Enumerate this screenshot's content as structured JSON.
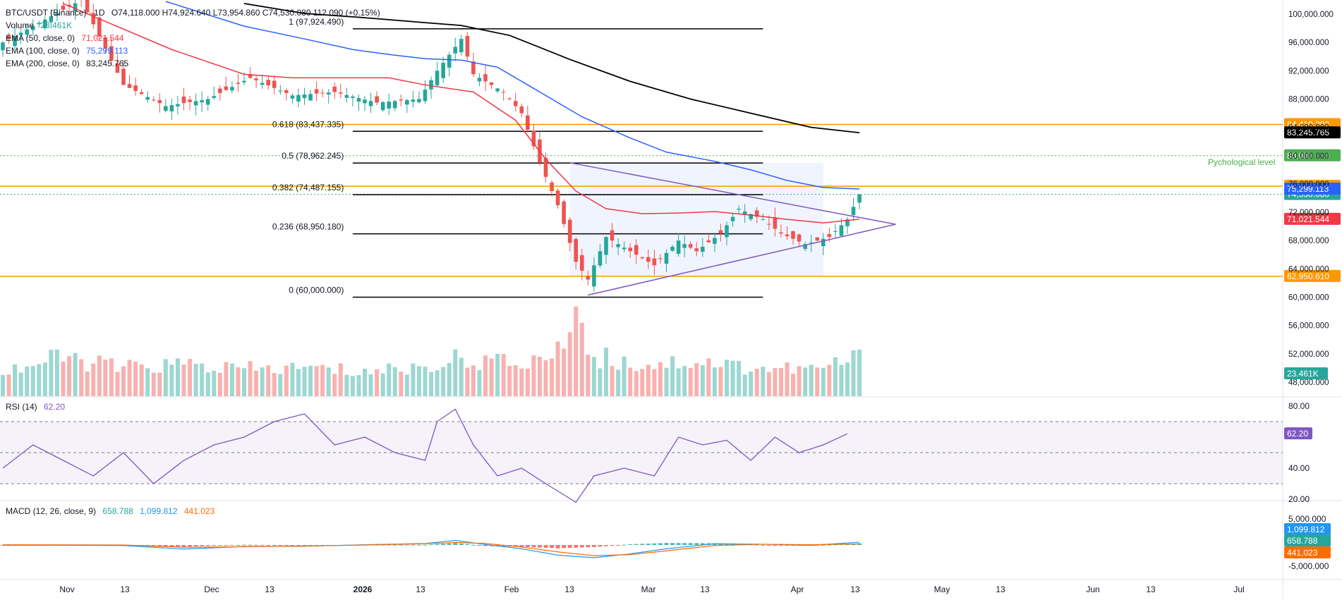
{
  "header": {
    "symbol": "BTC/USDT (Binance) · 1D",
    "ohlc": "O74,118.000 H74,924.640 L73,954.860 C74,530.080 112.090 (+0.15%)",
    "volume_label": "Volume",
    "volume_value": "23.461K",
    "ema50_label": "EMA (50, close, 0)",
    "ema50_value": "71,021.544",
    "ema100_label": "EMA (100, close, 0)",
    "ema100_value": "75,299.113",
    "ema200_label": "EMA (200, close, 0)",
    "ema200_value": "83,245.765"
  },
  "rsi_legend": {
    "label": "RSI (14)",
    "value": "62.20"
  },
  "macd_legend": {
    "label": "MACD (12, 26, close, 9)",
    "v1": "658.788",
    "v2": "1,099.812",
    "v3": "441.023"
  },
  "colors": {
    "up": "#26a69a",
    "down": "#ef5350",
    "ema50": "#f23645",
    "ema100": "#2962ff",
    "ema200": "#000000",
    "orange": "#ff9800",
    "green_level": "#4caf50",
    "triangle": "#7e57c2",
    "rsi": "#7e57c2",
    "macd": "#2196f3",
    "signal": "#ff6d00"
  },
  "chart_data": {
    "type": "candlestick",
    "x_axis": {
      "ticks": [
        "Nov",
        "13",
        "Dec",
        "13",
        "2026",
        "13",
        "Feb",
        "13",
        "Mar",
        "13",
        "Apr",
        "13",
        "May",
        "13",
        "Jun",
        "13",
        "Jul"
      ]
    },
    "price_axis": {
      "range": [
        46000,
        102000
      ],
      "ticks": [
        "100,000.000",
        "96,000.000",
        "92,000.000",
        "88,000.000",
        "84,000.000",
        "80,000.000",
        "76,000.000",
        "72,000.000",
        "68,000.000",
        "64,000.000",
        "60,000.000",
        "56,000.000",
        "52,000.000",
        "48,000.000"
      ]
    },
    "price_path": [
      [
        0,
        96000
      ],
      [
        13,
        102000
      ],
      [
        20,
        90000
      ],
      [
        27,
        87000
      ],
      [
        34,
        88000
      ],
      [
        41,
        91000
      ],
      [
        48,
        88500
      ],
      [
        55,
        89000
      ],
      [
        62,
        87500
      ],
      [
        69,
        88000
      ],
      [
        72,
        92000
      ],
      [
        76,
        96500
      ],
      [
        78,
        91500
      ],
      [
        83,
        89000
      ],
      [
        86,
        86000
      ],
      [
        89,
        79000
      ],
      [
        92,
        73000
      ],
      [
        95,
        65000
      ],
      [
        97,
        62500
      ],
      [
        100,
        68500
      ],
      [
        104,
        66500
      ],
      [
        108,
        64500
      ],
      [
        112,
        68000
      ],
      [
        115,
        66500
      ],
      [
        119,
        69000
      ],
      [
        122,
        72500
      ],
      [
        126,
        71000
      ],
      [
        129,
        69000
      ],
      [
        133,
        67500
      ],
      [
        137,
        68500
      ],
      [
        140,
        71000
      ],
      [
        142,
        74530
      ]
    ],
    "volume_path": [
      [
        0,
        35
      ],
      [
        10,
        55
      ],
      [
        20,
        40
      ],
      [
        30,
        45
      ],
      [
        40,
        38
      ],
      [
        50,
        40
      ],
      [
        60,
        35
      ],
      [
        70,
        42
      ],
      [
        77,
        55
      ],
      [
        85,
        45
      ],
      [
        92,
        60
      ],
      [
        95,
        140
      ],
      [
        97,
        60
      ],
      [
        105,
        45
      ],
      [
        115,
        50
      ],
      [
        125,
        40
      ],
      [
        135,
        38
      ],
      [
        142,
        55
      ]
    ],
    "ema50": [
      [
        10,
        101500
      ],
      [
        28,
        95000
      ],
      [
        40,
        91500
      ],
      [
        48,
        91000
      ],
      [
        58,
        91000
      ],
      [
        64,
        91000
      ],
      [
        70,
        90000
      ],
      [
        78,
        89000
      ],
      [
        85,
        85000
      ],
      [
        90,
        79500
      ],
      [
        95,
        75000
      ],
      [
        100,
        72500
      ],
      [
        106,
        71800
      ],
      [
        112,
        71900
      ],
      [
        118,
        72100
      ],
      [
        124,
        71600
      ],
      [
        130,
        71000
      ],
      [
        136,
        70500
      ],
      [
        142,
        71021.544
      ]
    ],
    "ema100": [
      [
        27,
        101800
      ],
      [
        40,
        98300
      ],
      [
        50,
        96500
      ],
      [
        58,
        95000
      ],
      [
        64,
        94300
      ],
      [
        70,
        93700
      ],
      [
        76,
        93500
      ],
      [
        82,
        92500
      ],
      [
        88,
        89500
      ],
      [
        96,
        85500
      ],
      [
        104,
        82500
      ],
      [
        110,
        80500
      ],
      [
        118,
        79200
      ],
      [
        124,
        78000
      ],
      [
        130,
        76500
      ],
      [
        136,
        75500
      ],
      [
        142,
        75299.113
      ]
    ],
    "ema200": [
      [
        40,
        101500
      ],
      [
        50,
        100100
      ],
      [
        60,
        99500
      ],
      [
        70,
        98800
      ],
      [
        76,
        98400
      ],
      [
        84,
        97000
      ],
      [
        94,
        93600
      ],
      [
        104,
        90500
      ],
      [
        114,
        88000
      ],
      [
        124,
        86000
      ],
      [
        134,
        84000
      ],
      [
        142,
        83245.765
      ]
    ],
    "fibonacci": [
      {
        "label": "1 (97,924.490)",
        "price": 97924.49
      },
      {
        "label": "0.618 (83,437.335)",
        "price": 83437.335
      },
      {
        "label": "0.5 (78,962.245)",
        "price": 78962.245
      },
      {
        "label": "0.382 (74,487.155)",
        "price": 74487.155
      },
      {
        "label": "0.236 (68,950.180)",
        "price": 68950.18
      },
      {
        "label": "0 (60,000.000)",
        "price": 60000
      }
    ],
    "horizontal_levels": [
      {
        "price": 84410.302,
        "label": "84,410.302",
        "color": "#ff9800"
      },
      {
        "price": 75680.16,
        "label": "75,680.160",
        "color": "#ff9800"
      },
      {
        "price": 62950.61,
        "label": "62,950.610",
        "color": "#ff9800"
      },
      {
        "price": 80000,
        "label": "80,000.000",
        "color": "#4caf50"
      },
      {
        "price": 74530.08,
        "label": "74,530.080",
        "color": "#26a69a"
      }
    ],
    "psych_label": "Pychological level",
    "price_badges": [
      {
        "price": 83245.765,
        "label": "83,245.765",
        "color": "#000000"
      },
      {
        "price": 75299.113,
        "label": "75,299.113",
        "color": "#2962ff"
      },
      {
        "price": 71021.544,
        "label": "71,021.544",
        "color": "#f23645"
      }
    ],
    "triangle": {
      "upper": [
        [
          94,
          79000
        ],
        [
          148,
          70300
        ]
      ],
      "lower": [
        [
          97,
          60300
        ],
        [
          148,
          70300
        ]
      ]
    },
    "volume_badge": "23.461K",
    "rsi": {
      "ticks": [
        "80.00",
        "40.00",
        "20.00"
      ],
      "badge": "62.20",
      "path": [
        [
          0,
          40
        ],
        [
          5,
          55
        ],
        [
          10,
          45
        ],
        [
          15,
          35
        ],
        [
          20,
          50
        ],
        [
          25,
          30
        ],
        [
          30,
          45
        ],
        [
          35,
          55
        ],
        [
          40,
          60
        ],
        [
          45,
          70
        ],
        [
          50,
          75
        ],
        [
          55,
          55
        ],
        [
          60,
          60
        ],
        [
          65,
          50
        ],
        [
          70,
          45
        ],
        [
          72,
          70
        ],
        [
          75,
          78
        ],
        [
          78,
          55
        ],
        [
          82,
          35
        ],
        [
          86,
          40
        ],
        [
          90,
          30
        ],
        [
          95,
          18
        ],
        [
          98,
          35
        ],
        [
          103,
          40
        ],
        [
          108,
          35
        ],
        [
          112,
          60
        ],
        [
          116,
          55
        ],
        [
          120,
          58
        ],
        [
          124,
          45
        ],
        [
          128,
          60
        ],
        [
          132,
          50
        ],
        [
          136,
          55
        ],
        [
          140,
          62.2
        ]
      ]
    },
    "macd": {
      "ticks": [
        "5,000.000",
        "-5,000.000",
        "-5,000.000"
      ],
      "badges": [
        "1,099.812",
        "658.788",
        "441.023"
      ],
      "macd_path": [
        [
          0,
          0
        ],
        [
          20,
          -200
        ],
        [
          30,
          -1600
        ],
        [
          40,
          -600
        ],
        [
          50,
          -500
        ],
        [
          60,
          100
        ],
        [
          70,
          600
        ],
        [
          75,
          1800
        ],
        [
          80,
          200
        ],
        [
          86,
          -1500
        ],
        [
          92,
          -4000
        ],
        [
          98,
          -5000
        ],
        [
          104,
          -3500
        ],
        [
          110,
          -1500
        ],
        [
          118,
          500
        ],
        [
          126,
          300
        ],
        [
          134,
          -100
        ],
        [
          142,
          1099.812
        ]
      ],
      "signal_path": [
        [
          0,
          100
        ],
        [
          20,
          0
        ],
        [
          30,
          -900
        ],
        [
          40,
          -700
        ],
        [
          50,
          -400
        ],
        [
          60,
          0
        ],
        [
          70,
          500
        ],
        [
          75,
          1000
        ],
        [
          80,
          600
        ],
        [
          86,
          -800
        ],
        [
          92,
          -2700
        ],
        [
          98,
          -4200
        ],
        [
          104,
          -3800
        ],
        [
          110,
          -2300
        ],
        [
          118,
          -200
        ],
        [
          126,
          300
        ],
        [
          134,
          100
        ],
        [
          142,
          441.023
        ]
      ]
    }
  }
}
